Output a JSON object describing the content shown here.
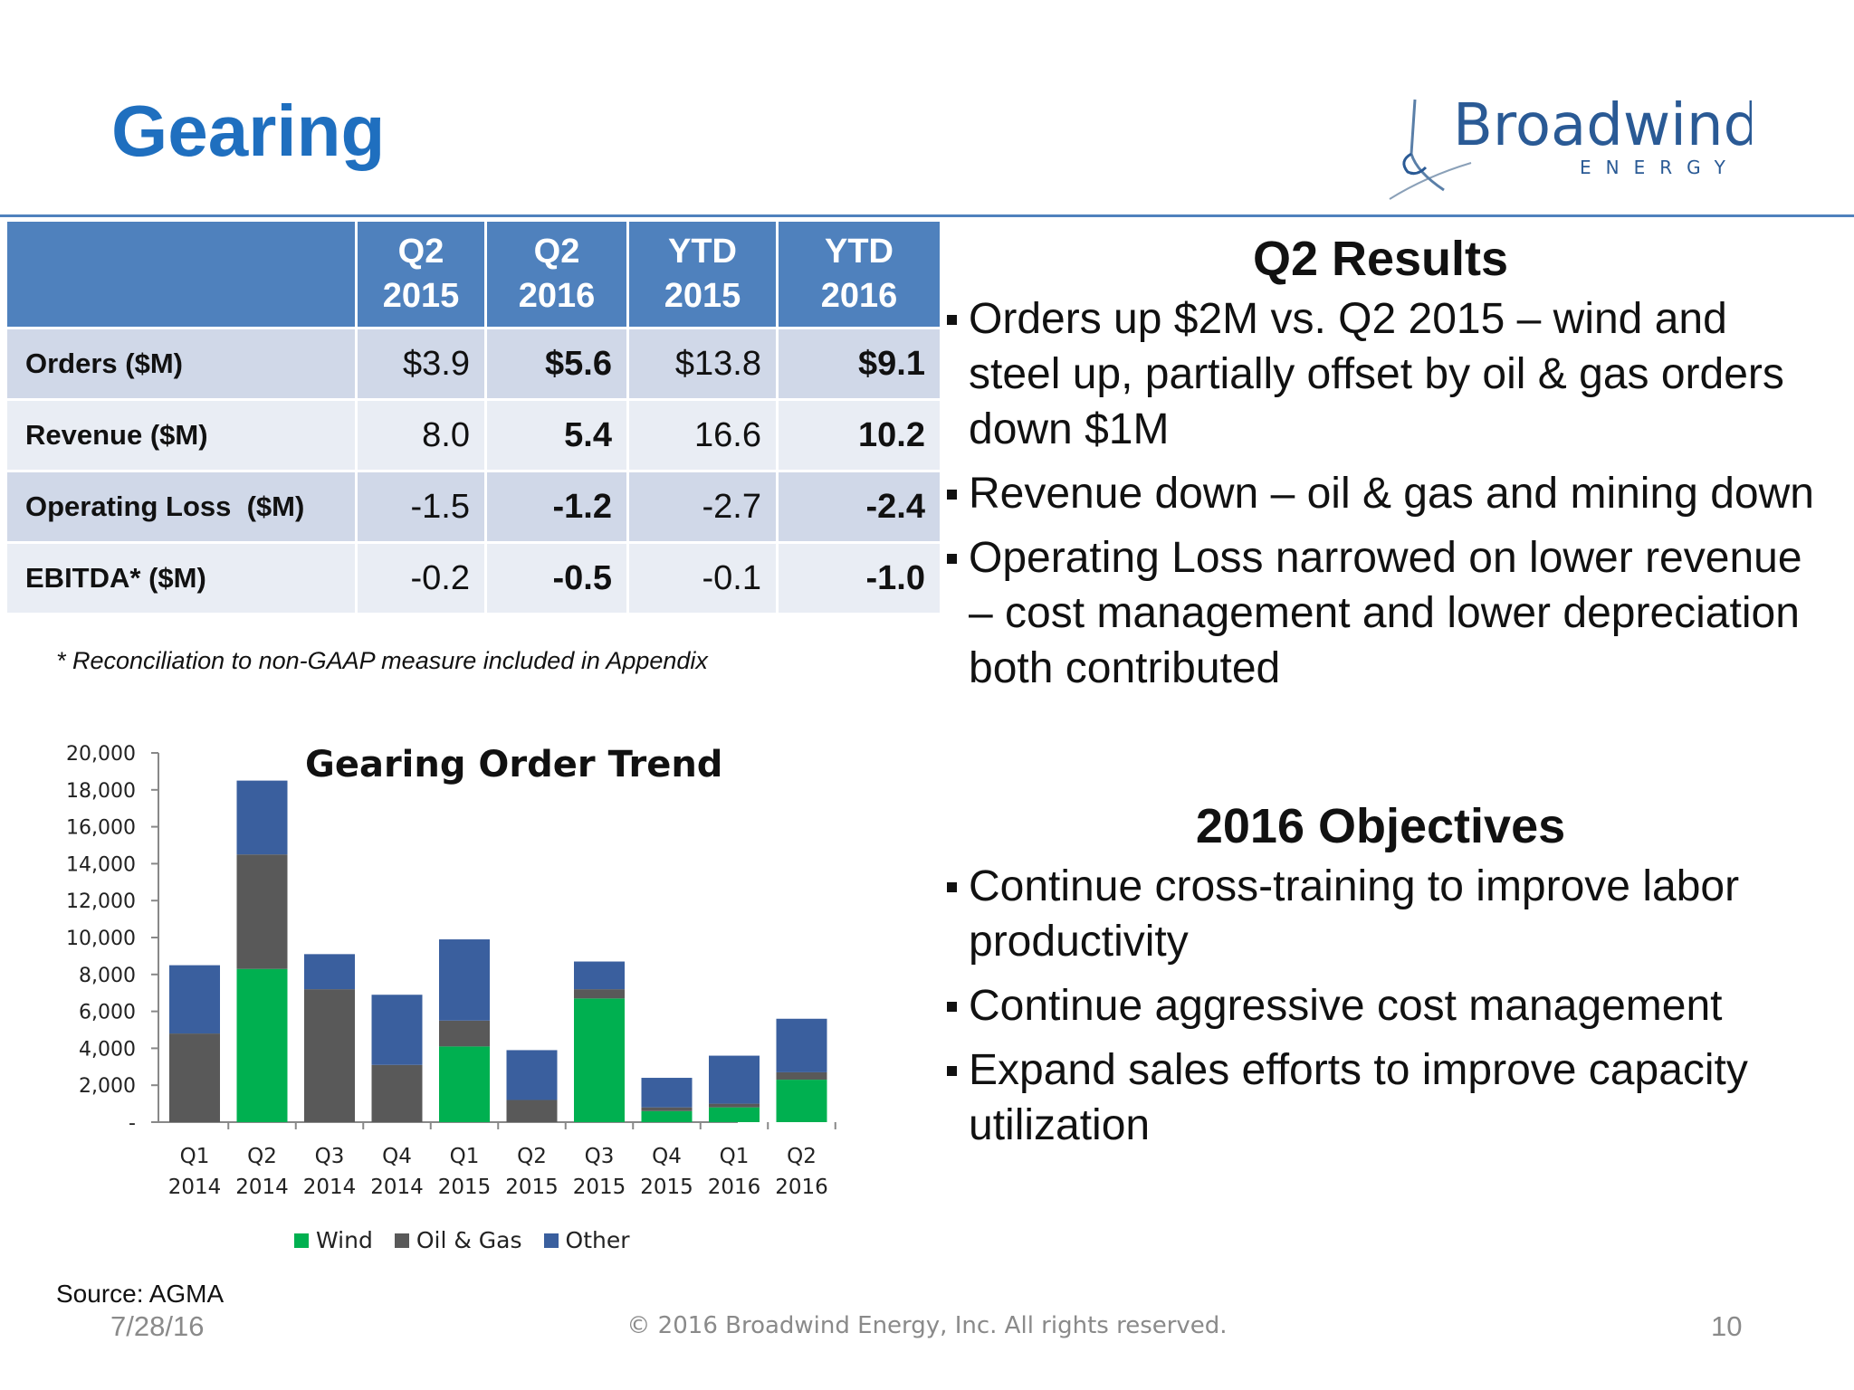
{
  "slide": {
    "title": "Gearing",
    "logo_text": "Broadwind",
    "logo_sub": "ENERGY",
    "footnote": "* Reconciliation to non-GAAP measure included in Appendix",
    "source": "Source: AGMA",
    "date": "7/28/16",
    "copyright": "© 2016 Broadwind Energy, Inc. All rights reserved.",
    "page_number": "10"
  },
  "table": {
    "headers": [
      {
        "line1": "Q2",
        "line2": "2015"
      },
      {
        "line1": "Q2",
        "line2": "2016"
      },
      {
        "line1": "YTD",
        "line2": "2015"
      },
      {
        "line1": "YTD",
        "line2": "2016"
      }
    ],
    "rows": [
      {
        "label": "Orders ($M)",
        "values": [
          "$3.9",
          "$5.6",
          "$13.8",
          "$9.1"
        ]
      },
      {
        "label": "Revenue ($M)",
        "values": [
          "8.0",
          "5.4",
          "16.6",
          "10.2"
        ]
      },
      {
        "label": "Operating Loss  ($M)",
        "values": [
          "-1.5",
          "-1.2",
          "-2.7",
          "-2.4"
        ]
      },
      {
        "label": "EBITDA* ($M)",
        "values": [
          "-0.2",
          "-0.5",
          "-0.1",
          "-1.0"
        ]
      }
    ]
  },
  "results": {
    "heading": "Q2 Results",
    "bullets": [
      "Orders up $2M vs. Q2 2015 – wind and steel up, partially offset by oil & gas orders down $1M",
      "Revenue down – oil & gas and mining down",
      "Operating Loss narrowed on lower revenue – cost management and lower depreciation both contributed"
    ]
  },
  "objectives": {
    "heading": "2016 Objectives",
    "bullets": [
      "Continue cross-training to improve labor productivity",
      "Continue aggressive cost management",
      "Expand sales efforts to improve capacity utilization"
    ]
  },
  "chart_data": {
    "type": "bar",
    "stacked": true,
    "title": "Gearing Order Trend",
    "categories": [
      [
        "Q1",
        "2014"
      ],
      [
        "Q2",
        "2014"
      ],
      [
        "Q3",
        "2014"
      ],
      [
        "Q4",
        "2014"
      ],
      [
        "Q1",
        "2015"
      ],
      [
        "Q2",
        "2015"
      ],
      [
        "Q3",
        "2015"
      ],
      [
        "Q4",
        "2015"
      ],
      [
        "Q1",
        "2016"
      ],
      [
        "Q2",
        "2016"
      ]
    ],
    "series": [
      {
        "name": "Wind",
        "color": "#00b050",
        "values": [
          0,
          8300,
          0,
          0,
          4100,
          0,
          6700,
          600,
          800,
          2300
        ]
      },
      {
        "name": "Oil & Gas",
        "color": "#595959",
        "values": [
          4800,
          6200,
          7200,
          3100,
          1400,
          1200,
          500,
          200,
          200,
          400
        ]
      },
      {
        "name": "Other",
        "color": "#3a5f9e",
        "values": [
          3700,
          4000,
          1900,
          3800,
          4400,
          2700,
          1500,
          1600,
          2600,
          2900
        ]
      }
    ],
    "yticks": [
      "20,000",
      "18,000",
      "16,000",
      "14,000",
      "12,000",
      "10,000",
      "8,000",
      "6,000",
      "4,000",
      "2,000",
      "-"
    ],
    "ylim": [
      0,
      20000
    ],
    "grid": false,
    "legend_position": "bottom"
  }
}
